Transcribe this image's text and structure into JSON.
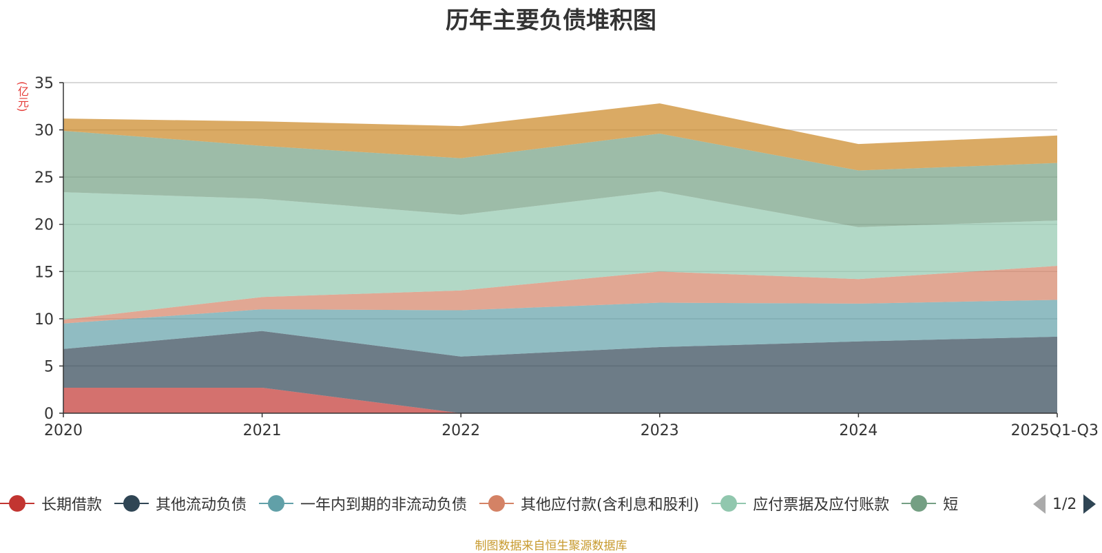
{
  "chart_data": {
    "type": "area",
    "stacked": true,
    "title": "历年主要负债堆积图",
    "ylabel": "(亿元)",
    "ylim": [
      0,
      35
    ],
    "yticks": [
      0,
      5,
      10,
      15,
      20,
      25,
      30,
      35
    ],
    "categories": [
      "2020",
      "2021",
      "2022",
      "2023",
      "2024",
      "2025Q1-Q3"
    ],
    "series": [
      {
        "name": "长期借款",
        "color": "#c23531",
        "values": [
          2.7,
          2.7,
          0.0,
          0.0,
          0.0,
          0.0
        ]
      },
      {
        "name": "其他流动负债",
        "color": "#2f4554",
        "values": [
          4.1,
          6.0,
          6.0,
          7.0,
          7.6,
          8.1
        ]
      },
      {
        "name": "一年内到期的非流动负债",
        "color": "#61a0a8",
        "values": [
          2.7,
          2.3,
          4.9,
          4.7,
          4.0,
          3.9
        ]
      },
      {
        "name": "其他应付款(含利息和股利)",
        "color": "#d48265",
        "values": [
          0.4,
          1.3,
          2.1,
          3.3,
          2.6,
          3.6
        ]
      },
      {
        "name": "应付票据及应付账款",
        "color": "#91c7ae",
        "values": [
          13.5,
          10.4,
          8.0,
          8.5,
          5.5,
          4.8
        ]
      },
      {
        "name": "短期借款",
        "color": "#749f83",
        "values": [
          6.5,
          5.6,
          6.0,
          6.1,
          6.0,
          6.1
        ]
      },
      {
        "name": "",
        "color": "#ca8622",
        "values": [
          1.3,
          2.6,
          3.4,
          3.2,
          2.8,
          2.9
        ]
      }
    ]
  },
  "legend": {
    "items": [
      {
        "label": "长期借款",
        "color": "#c23531"
      },
      {
        "label": "其他流动负债",
        "color": "#2f4554"
      },
      {
        "label": "一年内到期的非流动负债",
        "color": "#61a0a8"
      },
      {
        "label": "其他应付款(含利息和股利)",
        "color": "#d48265"
      },
      {
        "label": "应付票据及应付账款",
        "color": "#91c7ae"
      },
      {
        "label": "短",
        "color": "#749f83"
      }
    ],
    "page": "1/2"
  },
  "source": "制图数据来自恒生聚源数据库"
}
